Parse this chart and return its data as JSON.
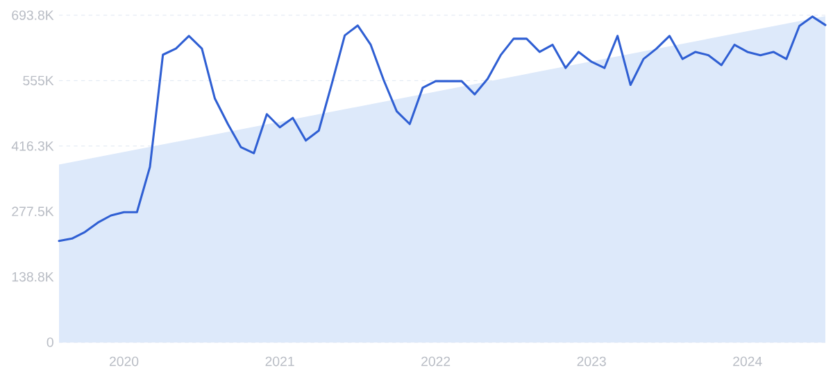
{
  "chart_data": {
    "type": "line",
    "x": [
      "2019-08",
      "2019-09",
      "2019-10",
      "2019-11",
      "2019-12",
      "2020-01",
      "2020-02",
      "2020-03",
      "2020-04",
      "2020-05",
      "2020-06",
      "2020-07",
      "2020-08",
      "2020-09",
      "2020-10",
      "2020-11",
      "2020-12",
      "2021-01",
      "2021-02",
      "2021-03",
      "2021-04",
      "2021-05",
      "2021-06",
      "2021-07",
      "2021-08",
      "2021-09",
      "2021-10",
      "2021-11",
      "2021-12",
      "2022-01",
      "2022-02",
      "2022-03",
      "2022-04",
      "2022-05",
      "2022-06",
      "2022-07",
      "2022-08",
      "2022-09",
      "2022-10",
      "2022-11",
      "2022-12",
      "2023-01",
      "2023-02",
      "2023-03",
      "2023-04",
      "2023-05",
      "2023-06",
      "2023-07",
      "2023-08",
      "2023-09",
      "2023-10",
      "2023-11",
      "2023-12",
      "2024-01",
      "2024-02",
      "2024-03",
      "2024-04",
      "2024-05",
      "2024-06",
      "2024-07"
    ],
    "series": [
      {
        "type": "area",
        "color": "#dde9fa",
        "x": [
          "2019-08",
          "2024-07"
        ],
        "values": [
          377000,
          692000
        ]
      },
      {
        "color": "#2f5fd3",
        "values": [
          215000,
          220000,
          234000,
          254000,
          269000,
          276000,
          276000,
          372000,
          610000,
          623000,
          650000,
          623000,
          517000,
          463000,
          414000,
          401000,
          484000,
          456000,
          476000,
          428000,
          449000,
          548000,
          651000,
          672000,
          631000,
          556000,
          490000,
          463000,
          540000,
          554000,
          554000,
          554000,
          526000,
          559000,
          609000,
          644000,
          644000,
          616000,
          631000,
          582000,
          616000,
          595000,
          582000,
          650000,
          546000,
          601000,
          623000,
          650000,
          601000,
          616000,
          609000,
          588000,
          631000,
          616000,
          609000,
          616000,
          601000,
          671000,
          691000,
          673000
        ]
      }
    ],
    "xlim": [
      "2019-08",
      "2024-07"
    ],
    "xticks": [
      "2020",
      "2021",
      "2022",
      "2023",
      "2024"
    ],
    "ylim": [
      0,
      693800
    ],
    "yticks": [
      0,
      {
        "value": 138800,
        "label": "138.8K"
      },
      {
        "value": 277500,
        "label": "277.5K"
      },
      {
        "value": 416300,
        "label": "416.3K"
      },
      {
        "value": 555000,
        "label": "555K"
      },
      {
        "value": 693800,
        "label": "693.8K"
      }
    ],
    "grid": "y"
  }
}
